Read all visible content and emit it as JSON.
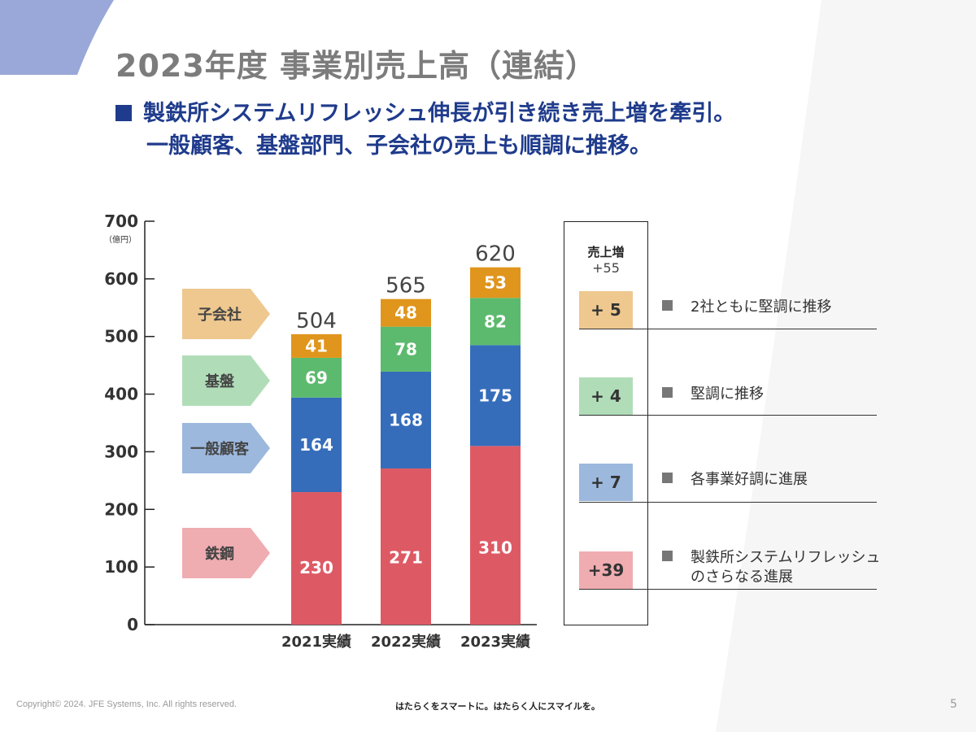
{
  "page": {
    "title": "2023年度 事業別売上高（連結）",
    "subtitle_line1": "製鉄所システムリフレッシュ伸長が引き続き売上増を牽引。",
    "subtitle_line2": "一般顧客、基盤部門、子会社の売上も順調に推移。",
    "footer_copyright": "Copyright© 2024. JFE Systems, Inc. All rights reserved.",
    "footer_slogan": "はたらくをスマートに。はたらく人にスマイルを。",
    "page_number": "5"
  },
  "chart_data": {
    "type": "bar",
    "stacked": true,
    "title": "",
    "ylabel": "（億円）",
    "ylim": [
      0,
      700
    ],
    "yticks": [
      0,
      100,
      200,
      300,
      400,
      500,
      600,
      700
    ],
    "categories": [
      "2021実績",
      "2022実績",
      "2023実績"
    ],
    "series": [
      {
        "name": "鉄鋼",
        "values": [
          230,
          271,
          310
        ],
        "color": "#dd5a65",
        "arrow_color": "#efacb1"
      },
      {
        "name": "一般顧客",
        "values": [
          164,
          168,
          175
        ],
        "color": "#356dbb",
        "arrow_color": "#9cb8dd"
      },
      {
        "name": "基盤",
        "values": [
          69,
          78,
          82
        ],
        "color": "#5cba6e",
        "arrow_color": "#b0ddb8"
      },
      {
        "name": "子会社",
        "values": [
          41,
          48,
          53
        ],
        "color": "#e0951d",
        "arrow_color": "#eec88f"
      }
    ],
    "totals": [
      504,
      565,
      620
    ]
  },
  "increase": {
    "header": "売上増",
    "total": "+55",
    "items": [
      {
        "segment": "子会社",
        "value": "+ 5",
        "note": "2社ともに堅調に推移",
        "note_line2": "",
        "color": "#eec88f"
      },
      {
        "segment": "基盤",
        "value": "+ 4",
        "note": "堅調に推移",
        "note_line2": "",
        "color": "#b0ddb8"
      },
      {
        "segment": "一般顧客",
        "value": "+ 7",
        "note": "各事業好調に進展",
        "note_line2": "",
        "color": "#9cb8dd"
      },
      {
        "segment": "鉄鋼",
        "value": "+39",
        "note": "製鉄所システムリフレッシュ",
        "note_line2": "のさらなる進展",
        "color": "#efacb1"
      }
    ]
  }
}
